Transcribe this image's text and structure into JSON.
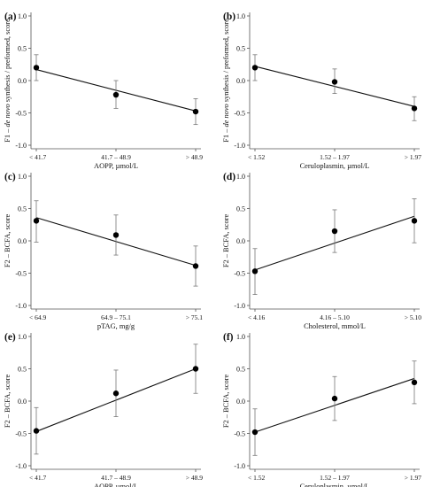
{
  "chart_data": [
    {
      "type": "scatter",
      "panel": "(a)",
      "xlabel": "AOPP,  µmol/L",
      "ylabel": "F1 – de novo synthesis / preformed, score",
      "ylabel_parts": [
        "F1 – ",
        "de novo",
        " synthesis / preformed, score"
      ],
      "ylim": [
        -1.0,
        1.0
      ],
      "yticks": [
        "1.0",
        "0.5",
        "0.0",
        "-0.5",
        "-1.0"
      ],
      "categories": [
        "< 41.7",
        "41.7 – 48.9",
        "> 48.9"
      ],
      "values": [
        0.2,
        -0.22,
        -0.48
      ],
      "error_low": [
        0.0,
        -0.43,
        -0.68
      ],
      "error_high": [
        0.4,
        0.0,
        -0.28
      ],
      "trend": [
        0.17,
        -0.47
      ]
    },
    {
      "type": "scatter",
      "panel": "(b)",
      "xlabel": "Ceruloplasmin, µmol/L",
      "ylabel": "F1 – de novo synthesis / preformed, score",
      "ylabel_parts": [
        "F1 – ",
        "de novo",
        " synthesis / preformed, score"
      ],
      "ylim": [
        -1.0,
        1.0
      ],
      "yticks": [
        "1.0",
        "0.5",
        "0.0",
        "-0.5",
        "-1.0"
      ],
      "categories": [
        "< 1.52",
        "1.52 – 1.97",
        "> 1.97"
      ],
      "values": [
        0.2,
        -0.02,
        -0.43
      ],
      "error_low": [
        0.0,
        -0.2,
        -0.62
      ],
      "error_high": [
        0.4,
        0.18,
        -0.25
      ],
      "trend": [
        0.22,
        -0.4
      ]
    },
    {
      "type": "scatter",
      "panel": "(c)",
      "xlabel": "pTAG, mg/g",
      "ylabel": "F2 – BCFA, score",
      "ylabel_parts": [
        "F2 – BCFA, score"
      ],
      "ylim": [
        -1.0,
        1.0
      ],
      "yticks": [
        "1.0",
        "0.5",
        "0.0",
        "-0.5",
        "-1.0"
      ],
      "categories": [
        "< 64.9",
        "64.9 – 75.1",
        "> 75.1"
      ],
      "values": [
        0.31,
        0.09,
        -0.39
      ],
      "error_low": [
        -0.02,
        -0.22,
        -0.7
      ],
      "error_high": [
        0.62,
        0.4,
        -0.08
      ],
      "trend": [
        0.36,
        -0.38
      ]
    },
    {
      "type": "scatter",
      "panel": "(d)",
      "xlabel": "Cholesterol, mmol/L",
      "ylabel": "F2 – BCFA, score",
      "ylabel_parts": [
        "F2 – BCFA, score"
      ],
      "ylim": [
        -1.0,
        1.0
      ],
      "yticks": [
        "1.0",
        "0.5",
        "0.0",
        "-0.5",
        "-1.0"
      ],
      "categories": [
        "< 4.16",
        "4.16 – 5.10",
        "> 5.10"
      ],
      "values": [
        -0.47,
        0.15,
        0.31
      ],
      "error_low": [
        -0.83,
        -0.18,
        -0.03
      ],
      "error_high": [
        -0.12,
        0.48,
        0.65
      ],
      "trend": [
        -0.45,
        0.38
      ]
    },
    {
      "type": "scatter",
      "panel": "(e)",
      "xlabel": "AOPP,  µmol/L",
      "ylabel": "F2 – BCFA, score",
      "ylabel_parts": [
        "F2 – BCFA, score"
      ],
      "ylim": [
        -1.0,
        1.0
      ],
      "yticks": [
        "1.0",
        "0.5",
        "0.0",
        "-0.5",
        "-1.0"
      ],
      "categories": [
        "< 41.7",
        "41.7 – 48.9",
        "> 48.9"
      ],
      "values": [
        -0.46,
        0.12,
        0.5
      ],
      "error_low": [
        -0.82,
        -0.24,
        0.12
      ],
      "error_high": [
        -0.1,
        0.48,
        0.88
      ],
      "trend": [
        -0.47,
        0.5
      ]
    },
    {
      "type": "scatter",
      "panel": "(f)",
      "xlabel": "Ceruloplasmin, µmol/L",
      "ylabel": "F2 – BCFA, score",
      "ylabel_parts": [
        "F2 – BCFA, score"
      ],
      "ylim": [
        -1.0,
        1.0
      ],
      "yticks": [
        "1.0",
        "0.5",
        "0.0",
        "-0.5",
        "-1.0"
      ],
      "categories": [
        "< 1.52",
        "1.52 – 1.97",
        "> 1.97"
      ],
      "values": [
        -0.48,
        0.04,
        0.29
      ],
      "error_low": [
        -0.84,
        -0.3,
        -0.04
      ],
      "error_high": [
        -0.12,
        0.38,
        0.62
      ],
      "trend": [
        -0.48,
        0.35
      ]
    }
  ]
}
